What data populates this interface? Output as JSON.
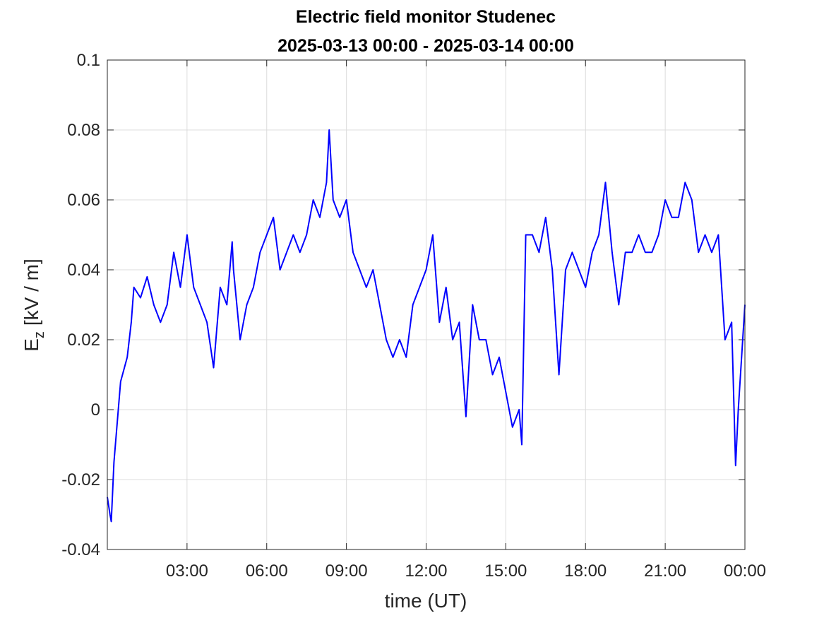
{
  "chart_data": {
    "type": "line",
    "title": "Electric field monitor Studenec",
    "subtitle": "2025-03-13 00:00 - 2025-03-14 00:00",
    "xlabel": "time (UT)",
    "ylabel": "E",
    "ylabel_subscript": "z",
    "ylabel_unit": "[kV / m]",
    "xlim": [
      0,
      24
    ],
    "ylim": [
      -0.04,
      0.1
    ],
    "xticks": [
      {
        "value": 3,
        "label": "03:00"
      },
      {
        "value": 6,
        "label": "06:00"
      },
      {
        "value": 9,
        "label": "09:00"
      },
      {
        "value": 12,
        "label": "12:00"
      },
      {
        "value": 15,
        "label": "15:00"
      },
      {
        "value": 18,
        "label": "18:00"
      },
      {
        "value": 21,
        "label": "21:00"
      },
      {
        "value": 24,
        "label": "00:00"
      }
    ],
    "yticks": [
      -0.04,
      -0.02,
      0,
      0.02,
      0.04,
      0.06,
      0.08,
      0.1
    ],
    "grid": true,
    "series": [
      {
        "name": "Ez",
        "color": "#0000ff",
        "x": [
          0,
          0.1,
          0.15,
          0.25,
          0.5,
          0.75,
          0.9,
          1.0,
          1.25,
          1.5,
          1.75,
          2.0,
          2.25,
          2.5,
          2.75,
          3.0,
          3.25,
          3.5,
          3.75,
          4.0,
          4.25,
          4.5,
          4.7,
          4.75,
          5.0,
          5.25,
          5.5,
          5.75,
          6.0,
          6.25,
          6.5,
          6.75,
          7.0,
          7.25,
          7.5,
          7.75,
          8.0,
          8.25,
          8.35,
          8.5,
          8.75,
          9.0,
          9.25,
          9.5,
          9.75,
          10.0,
          10.25,
          10.5,
          10.75,
          11.0,
          11.25,
          11.5,
          11.75,
          12.0,
          12.25,
          12.5,
          12.75,
          13.0,
          13.25,
          13.5,
          13.75,
          14.0,
          14.25,
          14.5,
          14.75,
          15.0,
          15.25,
          15.5,
          15.6,
          15.75,
          16.0,
          16.25,
          16.5,
          16.75,
          17.0,
          17.25,
          17.5,
          17.75,
          18.0,
          18.25,
          18.5,
          18.75,
          19.0,
          19.25,
          19.5,
          19.75,
          20.0,
          20.25,
          20.5,
          20.75,
          21.0,
          21.25,
          21.5,
          21.75,
          22.0,
          22.25,
          22.5,
          22.75,
          23.0,
          23.25,
          23.5,
          23.65,
          23.75,
          24
        ],
        "values": [
          -0.025,
          -0.03,
          -0.032,
          -0.015,
          0.008,
          0.015,
          0.025,
          0.035,
          0.032,
          0.038,
          0.03,
          0.025,
          0.03,
          0.045,
          0.035,
          0.05,
          0.035,
          0.03,
          0.025,
          0.012,
          0.035,
          0.03,
          0.048,
          0.04,
          0.02,
          0.03,
          0.035,
          0.045,
          0.05,
          0.055,
          0.04,
          0.045,
          0.05,
          0.045,
          0.05,
          0.06,
          0.055,
          0.065,
          0.08,
          0.06,
          0.055,
          0.06,
          0.045,
          0.04,
          0.035,
          0.04,
          0.03,
          0.02,
          0.015,
          0.02,
          0.015,
          0.03,
          0.035,
          0.04,
          0.05,
          0.025,
          0.035,
          0.02,
          0.025,
          -0.002,
          0.03,
          0.02,
          0.02,
          0.01,
          0.015,
          0.005,
          -0.005,
          0.0,
          -0.01,
          0.05,
          0.05,
          0.045,
          0.055,
          0.04,
          0.01,
          0.04,
          0.045,
          0.04,
          0.035,
          0.045,
          0.05,
          0.065,
          0.045,
          0.03,
          0.045,
          0.045,
          0.05,
          0.045,
          0.045,
          0.05,
          0.06,
          0.055,
          0.055,
          0.065,
          0.06,
          0.045,
          0.05,
          0.045,
          0.05,
          0.02,
          0.025,
          -0.016,
          0.0,
          0.03
        ]
      }
    ]
  }
}
